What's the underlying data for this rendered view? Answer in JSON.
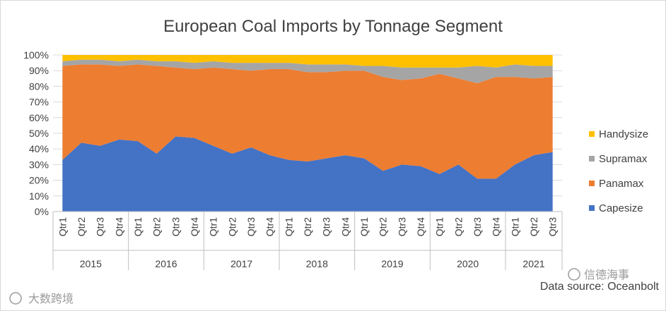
{
  "chart_data": {
    "type": "area",
    "stacked": true,
    "percent": true,
    "title": "European Coal Imports by Tonnage Segment",
    "xlabel": "",
    "ylabel": "",
    "ylim": [
      0,
      100
    ],
    "yticks": [
      "0%",
      "10%",
      "20%",
      "30%",
      "40%",
      "50%",
      "60%",
      "70%",
      "80%",
      "90%",
      "100%"
    ],
    "quarters": [
      "Qtr1",
      "Qtr2",
      "Qtr3",
      "Qtr4",
      "Qtr1",
      "Qtr2",
      "Qtr3",
      "Qtr4",
      "Qtr1",
      "Qtr2",
      "Qtr3",
      "Qtr4",
      "Qtr1",
      "Qtr2",
      "Qtr3",
      "Qtr4",
      "Qtr1",
      "Qtr2",
      "Qtr3",
      "Qtr4",
      "Qtr1",
      "Qtr2",
      "Qtr3",
      "Qtr4",
      "Qtr1",
      "Qtr2",
      "Qtr3"
    ],
    "years": [
      {
        "label": "2015",
        "count": 4
      },
      {
        "label": "2016",
        "count": 4
      },
      {
        "label": "2017",
        "count": 4
      },
      {
        "label": "2018",
        "count": 4
      },
      {
        "label": "2019",
        "count": 4
      },
      {
        "label": "2020",
        "count": 4
      },
      {
        "label": "2021",
        "count": 3
      }
    ],
    "series": [
      {
        "name": "Capesize",
        "color": "#4472C4",
        "values": [
          33,
          44,
          42,
          46,
          45,
          37,
          48,
          47,
          42,
          37,
          41,
          36,
          33,
          32,
          34,
          36,
          34,
          26,
          30,
          29,
          24,
          30,
          21,
          21,
          30,
          36,
          38
        ]
      },
      {
        "name": "Panamax",
        "color": "#ED7D31",
        "values": [
          60,
          50,
          52,
          47,
          49,
          56,
          44,
          44,
          50,
          54,
          49,
          55,
          58,
          57,
          55,
          54,
          56,
          60,
          54,
          56,
          64,
          55,
          61,
          65,
          56,
          49,
          48
        ]
      },
      {
        "name": "Supramax",
        "color": "#A5A5A5",
        "values": [
          3,
          3,
          3,
          3,
          3,
          3,
          4,
          4,
          4,
          4,
          5,
          4,
          4,
          5,
          5,
          4,
          3,
          7,
          8,
          7,
          4,
          7,
          11,
          6,
          8,
          8,
          7
        ]
      },
      {
        "name": "Handysize",
        "color": "#FFC000",
        "values": [
          4,
          3,
          3,
          4,
          3,
          4,
          4,
          5,
          4,
          5,
          5,
          5,
          5,
          6,
          6,
          6,
          7,
          7,
          8,
          8,
          8,
          8,
          7,
          8,
          6,
          7,
          7
        ]
      }
    ],
    "legend": [
      "Handysize",
      "Supramax",
      "Panamax",
      "Capesize"
    ],
    "legend_position": "right",
    "source": "Data source: Oceanbolt"
  },
  "watermarks": {
    "top_right": "信德海事",
    "bottom_left": "大数跨境"
  }
}
